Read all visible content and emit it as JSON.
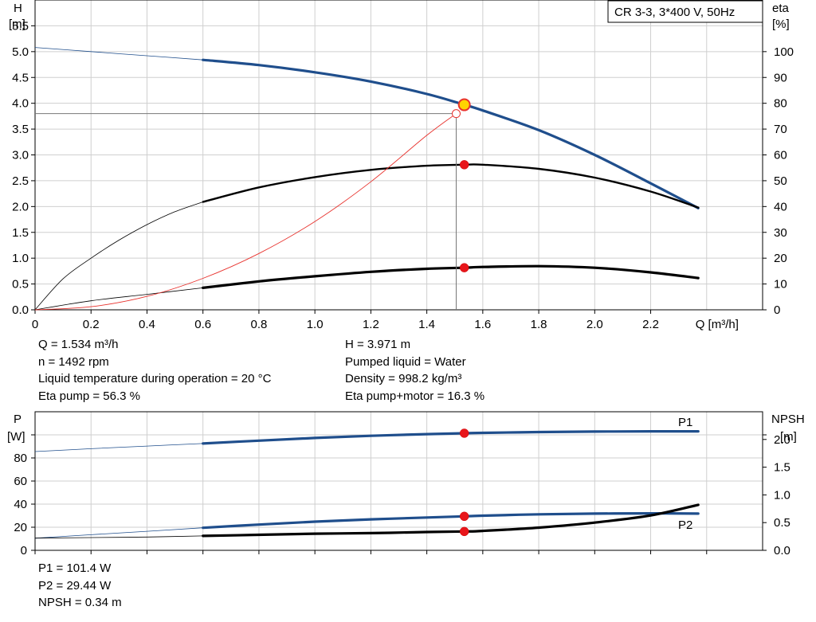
{
  "chart_data": [
    {
      "type": "line",
      "id": "head_efficiency",
      "title": "CR 3-3, 3*400 V, 50Hz",
      "xlabel": "Q [m³/h]",
      "ylabel_left": [
        "H",
        "[m]"
      ],
      "ylabel_right": [
        "eta",
        "[%]"
      ],
      "xlim": [
        0,
        2.6
      ],
      "ylim_left": [
        0,
        6
      ],
      "ylim_right": [
        0,
        120
      ],
      "x_ticks": [
        "0",
        "0.2",
        "0.4",
        "0.6",
        "0.8",
        "1.0",
        "1.2",
        "1.4",
        "1.6",
        "1.8",
        "2.0",
        "2.2"
      ],
      "y_ticks_left": [
        "0.0",
        "0.5",
        "1.0",
        "1.5",
        "2.0",
        "2.5",
        "3.0",
        "3.5",
        "4.0",
        "4.5",
        "5.0",
        "5.5"
      ],
      "y_ticks_right": [
        "0",
        "10",
        "20",
        "30",
        "40",
        "50",
        "60",
        "70",
        "80",
        "90",
        "100"
      ],
      "grid": true,
      "series": [
        {
          "axis": "left",
          "color": "#1f4e8c",
          "x_start": 0.6,
          "thin_x": [
            0,
            0.2,
            0.4,
            0.6
          ],
          "thin_y": [
            5.08,
            5.0,
            4.92,
            4.84
          ],
          "x": [
            0.6,
            0.8,
            1.0,
            1.2,
            1.4,
            1.534,
            1.6,
            1.8,
            2.0,
            2.2,
            2.37
          ],
          "y": [
            4.84,
            4.74,
            4.6,
            4.42,
            4.18,
            3.971,
            3.86,
            3.48,
            3.0,
            2.45,
            1.97
          ]
        },
        {
          "axis": "left",
          "color": "#000000",
          "thin_x": [
            0,
            0.1,
            0.2,
            0.3,
            0.4,
            0.5,
            0.6
          ],
          "thin_y": [
            0,
            0.6,
            1.0,
            1.35,
            1.65,
            1.9,
            2.09
          ],
          "x": [
            0.6,
            0.8,
            1.0,
            1.2,
            1.4,
            1.534,
            1.6,
            1.8,
            2.0,
            2.2,
            2.37
          ],
          "y": [
            2.09,
            2.37,
            2.57,
            2.71,
            2.79,
            2.81,
            2.81,
            2.73,
            2.56,
            2.29,
            1.98
          ]
        },
        {
          "axis": "right",
          "color": "#000000",
          "thin_x": [
            0,
            0.2,
            0.4,
            0.6
          ],
          "thin_y": [
            0,
            3.5,
            6.0,
            8.5
          ],
          "x": [
            0.6,
            0.8,
            1.0,
            1.2,
            1.4,
            1.534,
            1.6,
            1.8,
            2.0,
            2.2,
            2.37
          ],
          "y": [
            8.5,
            11.0,
            13.0,
            14.7,
            15.9,
            16.3,
            16.6,
            16.9,
            16.3,
            14.5,
            12.3
          ]
        }
      ],
      "system_curve": {
        "color": "#e8322d",
        "x": [
          0,
          0.2,
          0.4,
          0.6,
          0.8,
          1.0,
          1.2,
          1.4,
          1.505
        ],
        "y": [
          0,
          0.06,
          0.26,
          0.61,
          1.09,
          1.71,
          2.48,
          3.38,
          3.8
        ]
      },
      "operating_point": {
        "Q": 1.534,
        "H": 3.971
      },
      "reference_point": {
        "Q": 1.505,
        "H": 3.8
      },
      "markers": [
        {
          "axis": "left",
          "x": 1.534,
          "y": 2.81
        },
        {
          "axis": "right",
          "x": 1.534,
          "y": 16.3
        }
      ]
    },
    {
      "type": "line",
      "id": "power_npsh",
      "ylabel_left": [
        "P",
        "[W]"
      ],
      "ylabel_right": [
        "NPSH",
        "[m]"
      ],
      "xlim": [
        0,
        2.6
      ],
      "ylim_left": [
        0,
        120
      ],
      "ylim_right": [
        0,
        2.5
      ],
      "y_ticks_left": [
        "0",
        "20",
        "40",
        "60",
        "80"
      ],
      "y_ticks_right": [
        "0.0",
        "0.5",
        "1.0",
        "1.5",
        "2.0"
      ],
      "grid": true,
      "series": [
        {
          "name": "P1",
          "axis": "left",
          "color": "#1f4e8c",
          "thin_x": [
            0,
            0.2,
            0.4,
            0.6
          ],
          "thin_y": [
            85.5,
            88,
            90.3,
            92.5
          ],
          "x": [
            0.6,
            0.8,
            1.0,
            1.2,
            1.4,
            1.534,
            1.6,
            1.8,
            2.0,
            2.2,
            2.37
          ],
          "y": [
            92.5,
            95.0,
            97.3,
            99.2,
            100.6,
            101.4,
            101.7,
            102.4,
            102.8,
            103.0,
            103.0
          ]
        },
        {
          "name": "P2",
          "axis": "left",
          "color": "#1f4e8c",
          "thin_x": [
            0,
            0.2,
            0.4,
            0.6
          ],
          "thin_y": [
            10.5,
            13.5,
            16.5,
            19.5
          ],
          "x": [
            0.6,
            0.8,
            1.0,
            1.2,
            1.4,
            1.534,
            1.6,
            1.8,
            2.0,
            2.2,
            2.37
          ],
          "y": [
            19.5,
            22.3,
            24.8,
            26.8,
            28.4,
            29.44,
            30.0,
            31.2,
            31.8,
            32.0,
            31.8
          ]
        },
        {
          "axis": "right",
          "color": "#000000",
          "thin_x": [
            0,
            0.2,
            0.4,
            0.6
          ],
          "thin_y": [
            0.22,
            0.23,
            0.24,
            0.26
          ],
          "x": [
            0.6,
            0.8,
            1.0,
            1.2,
            1.4,
            1.534,
            1.6,
            1.8,
            2.0,
            2.2,
            2.37
          ],
          "y": [
            0.26,
            0.28,
            0.3,
            0.31,
            0.33,
            0.34,
            0.35,
            0.41,
            0.5,
            0.63,
            0.82
          ]
        }
      ],
      "markers": [
        {
          "axis": "left",
          "x": 1.534,
          "y": 101.4
        },
        {
          "axis": "left",
          "x": 1.534,
          "y": 29.44
        },
        {
          "axis": "right",
          "x": 1.534,
          "y": 0.34
        }
      ]
    }
  ],
  "info1": {
    "left": [
      "Q = 1.534 m³/h",
      "n = 1492 rpm",
      "Liquid temperature during operation = 20 °C",
      "Eta pump = 56.3 %"
    ],
    "right": [
      "H = 3.971 m",
      "Pumped liquid = Water",
      "Density = 998.2 kg/m³",
      "Eta pump+motor = 16.3 %"
    ]
  },
  "info2": [
    "P1 = 101.4 W",
    "P2 = 29.44 W",
    "NPSH = 0.34 m"
  ]
}
